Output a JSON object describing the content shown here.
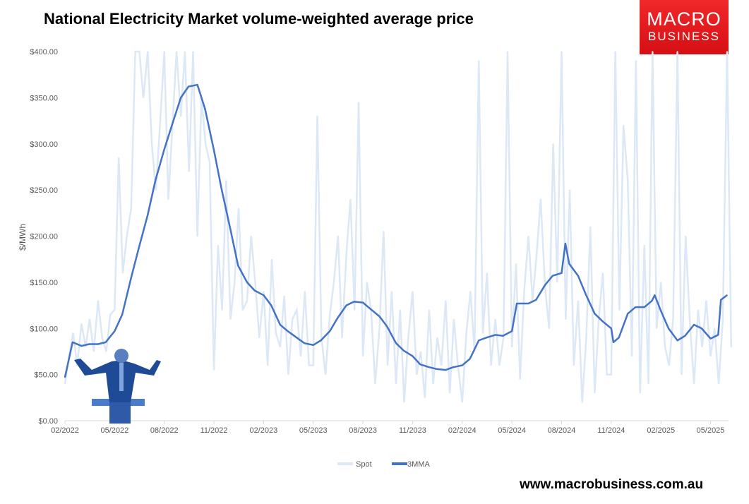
{
  "title": "National Electricity Market volume-weighted average price",
  "logo": {
    "line1": "MACRO",
    "line2": "BUSINESS"
  },
  "url": "www.macrobusiness.com.au",
  "colors": {
    "spot": "#dce8f5",
    "mma": "#4472c4",
    "logo": "#e81c20"
  },
  "chart_data": {
    "type": "line",
    "title": "National Electricity Market volume-weighted average price",
    "ylabel": "$/MWh",
    "ylim": [
      0,
      400
    ],
    "yticks": [
      "$0.00",
      "$50.00",
      "$100.00",
      "$150.00",
      "$200.00",
      "$250.00",
      "$300.00",
      "$350.00",
      "$400.00"
    ],
    "xticks": [
      "02/2022",
      "05/2022",
      "08/2022",
      "11/2022",
      "02/2023",
      "05/2023",
      "08/2023",
      "11/2023",
      "02/2024",
      "05/2024",
      "08/2024",
      "11/2024",
      "02/2025",
      "05/2025"
    ],
    "legend": {
      "position": "bottom",
      "entries": [
        "Spot",
        "3MMA"
      ]
    },
    "grid": false,
    "series": [
      {
        "name": "Spot",
        "weekly_by_month": [
          {
            "month": "2022-02",
            "values": [
              40,
              70,
              95,
              60
            ]
          },
          {
            "month": "2022-03",
            "values": [
              105,
              80,
              110,
              75
            ]
          },
          {
            "month": "2022-04",
            "values": [
              130,
              90,
              75,
              115
            ]
          },
          {
            "month": "2022-05",
            "values": [
              120,
              285,
              160,
              200
            ]
          },
          {
            "month": "2022-06",
            "values": [
              230,
              400,
              400,
              350
            ]
          },
          {
            "month": "2022-07",
            "values": [
              400,
              300,
              250,
              320
            ]
          },
          {
            "month": "2022-08",
            "values": [
              400,
              240,
              320,
              400
            ]
          },
          {
            "month": "2022-09",
            "values": [
              330,
              400,
              270,
              400
            ]
          },
          {
            "month": "2022-10",
            "values": [
              200,
              350,
              300,
              280
            ]
          },
          {
            "month": "2022-11",
            "values": [
              55,
              190,
              120,
              260
            ]
          },
          {
            "month": "2022-12",
            "values": [
              110,
              150,
              230,
              120
            ]
          },
          {
            "month": "2023-01",
            "values": [
              130,
              200,
              150,
              90
            ]
          },
          {
            "month": "2023-02",
            "values": [
              140,
              60,
              175,
              95
            ]
          },
          {
            "month": "2023-03",
            "values": [
              80,
              135,
              50,
              110
            ]
          },
          {
            "month": "2023-04",
            "values": [
              120,
              70,
              140,
              60
            ]
          },
          {
            "month": "2023-05",
            "values": [
              60,
              330,
              90,
              50
            ]
          },
          {
            "month": "2023-06",
            "values": [
              115,
              150,
              200,
              90
            ]
          },
          {
            "month": "2023-07",
            "values": [
              180,
              240,
              120,
              345
            ]
          },
          {
            "month": "2023-08",
            "values": [
              70,
              150,
              120,
              40
            ]
          },
          {
            "month": "2023-09",
            "values": [
              100,
              205,
              60,
              140
            ]
          },
          {
            "month": "2023-10",
            "values": [
              40,
              120,
              20,
              90
            ]
          },
          {
            "month": "2023-11",
            "values": [
              140,
              50,
              75,
              25
            ]
          },
          {
            "month": "2023-12",
            "values": [
              120,
              40,
              90,
              60
            ]
          },
          {
            "month": "2024-01",
            "values": [
              130,
              30,
              110,
              60
            ]
          },
          {
            "month": "2024-02",
            "values": [
              20,
              95,
              140,
              75
            ]
          },
          {
            "month": "2024-03",
            "values": [
              390,
              95,
              160,
              60
            ]
          },
          {
            "month": "2024-04",
            "values": [
              110,
              60,
              90,
              400
            ]
          },
          {
            "month": "2024-05",
            "values": [
              80,
              170,
              45,
              140
            ]
          },
          {
            "month": "2024-06",
            "values": [
              200,
              130,
              180,
              240
            ]
          },
          {
            "month": "2024-07",
            "values": [
              145,
              100,
              300,
              150
            ]
          },
          {
            "month": "2024-08",
            "values": [
              400,
              110,
              250,
              60
            ]
          },
          {
            "month": "2024-09",
            "values": [
              130,
              20,
              90,
              210
            ]
          },
          {
            "month": "2024-10",
            "values": [
              30,
              110,
              160,
              50
            ]
          },
          {
            "month": "2024-11",
            "values": [
              50,
              400,
              120,
              320
            ]
          },
          {
            "month": "2024-12",
            "values": [
              260,
              70,
              390,
              30
            ]
          },
          {
            "month": "2025-01",
            "values": [
              190,
              40,
              400,
              100
            ]
          },
          {
            "month": "2025-02",
            "values": [
              150,
              80,
              60,
              110
            ]
          },
          {
            "month": "2025-03",
            "values": [
              400,
              50,
              200,
              110
            ]
          },
          {
            "month": "2025-04",
            "values": [
              40,
              120,
              80,
              130
            ]
          },
          {
            "month": "2025-05",
            "values": [
              70,
              100,
              40,
              110
            ]
          },
          {
            "month": "2025-06",
            "values": [
              400,
              80
            ]
          }
        ]
      },
      {
        "name": "3MMA",
        "points": [
          [
            "2022-02-01",
            47
          ],
          [
            "2022-02-15",
            85
          ],
          [
            "2022-03-01",
            81
          ],
          [
            "2022-03-15",
            83
          ],
          [
            "2022-04-01",
            83
          ],
          [
            "2022-04-15",
            85
          ],
          [
            "2022-05-01",
            97
          ],
          [
            "2022-05-15",
            115
          ],
          [
            "2022-06-01",
            155
          ],
          [
            "2022-06-15",
            187
          ],
          [
            "2022-07-01",
            223
          ],
          [
            "2022-07-15",
            260
          ],
          [
            "2022-08-01",
            294
          ],
          [
            "2022-08-15",
            320
          ],
          [
            "2022-09-01",
            350
          ],
          [
            "2022-09-15",
            362
          ],
          [
            "2022-10-01",
            364
          ],
          [
            "2022-10-15",
            338
          ],
          [
            "2022-11-01",
            293
          ],
          [
            "2022-11-15",
            251
          ],
          [
            "2022-12-01",
            207
          ],
          [
            "2022-12-15",
            168
          ],
          [
            "2023-01-01",
            150
          ],
          [
            "2023-01-15",
            141
          ],
          [
            "2023-02-01",
            136
          ],
          [
            "2023-02-15",
            125
          ],
          [
            "2023-03-01",
            104
          ],
          [
            "2023-03-15",
            97
          ],
          [
            "2023-04-01",
            90
          ],
          [
            "2023-04-15",
            84
          ],
          [
            "2023-05-01",
            82
          ],
          [
            "2023-05-15",
            87
          ],
          [
            "2023-06-01",
            97
          ],
          [
            "2023-06-15",
            111
          ],
          [
            "2023-07-01",
            125
          ],
          [
            "2023-07-15",
            129
          ],
          [
            "2023-08-01",
            128
          ],
          [
            "2023-08-15",
            121
          ],
          [
            "2023-09-01",
            113
          ],
          [
            "2023-09-15",
            102
          ],
          [
            "2023-10-01",
            84
          ],
          [
            "2023-10-15",
            76
          ],
          [
            "2023-11-01",
            70
          ],
          [
            "2023-11-15",
            61
          ],
          [
            "2023-12-01",
            58
          ],
          [
            "2023-12-15",
            56
          ],
          [
            "2024-01-01",
            55
          ],
          [
            "2024-01-15",
            58
          ],
          [
            "2024-02-01",
            60
          ],
          [
            "2024-02-15",
            67
          ],
          [
            "2024-03-01",
            87
          ],
          [
            "2024-03-15",
            90
          ],
          [
            "2024-04-01",
            93
          ],
          [
            "2024-04-15",
            92
          ],
          [
            "2024-05-01",
            97
          ],
          [
            "2024-05-10",
            127
          ],
          [
            "2024-06-01",
            127
          ],
          [
            "2024-06-15",
            131
          ],
          [
            "2024-07-01",
            147
          ],
          [
            "2024-07-15",
            157
          ],
          [
            "2024-08-01",
            160
          ],
          [
            "2024-08-08",
            192
          ],
          [
            "2024-08-15",
            170
          ],
          [
            "2024-09-01",
            157
          ],
          [
            "2024-09-15",
            137
          ],
          [
            "2024-10-01",
            116
          ],
          [
            "2024-10-15",
            108
          ],
          [
            "2024-11-01",
            100
          ],
          [
            "2024-11-05",
            85
          ],
          [
            "2024-11-15",
            90
          ],
          [
            "2024-12-01",
            116
          ],
          [
            "2024-12-15",
            123
          ],
          [
            "2025-01-01",
            123
          ],
          [
            "2025-01-15",
            130
          ],
          [
            "2025-01-20",
            136
          ],
          [
            "2025-02-01",
            119
          ],
          [
            "2025-02-15",
            100
          ],
          [
            "2025-03-01",
            87
          ],
          [
            "2025-03-15",
            92
          ],
          [
            "2025-04-01",
            104
          ],
          [
            "2025-04-15",
            100
          ],
          [
            "2025-05-01",
            89
          ],
          [
            "2025-05-15",
            93
          ],
          [
            "2025-05-20",
            131
          ],
          [
            "2025-06-01",
            136
          ]
        ]
      }
    ]
  }
}
